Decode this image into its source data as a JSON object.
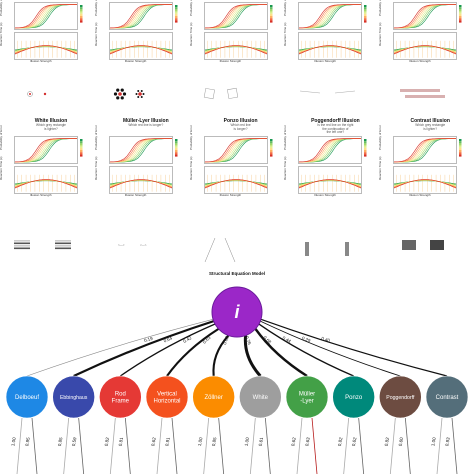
{
  "panels_top": [
    {
      "title": "",
      "sub": "",
      "xlabel": "Illusion Strength",
      "y1": "Probability of Error",
      "y2": "Reaction Time (s)"
    },
    {
      "title": "",
      "sub": "",
      "xlabel": "Illusion Strength",
      "y1": "Probability of Error",
      "y2": "Reaction Time (s)"
    },
    {
      "title": "",
      "sub": "",
      "xlabel": "Illusion Strength",
      "y1": "Probability of Error",
      "y2": "Reaction Time (s)"
    },
    {
      "title": "",
      "sub": "",
      "xlabel": "Illusion Strength",
      "y1": "Probability of Error",
      "y2": "Reaction Time (s)"
    },
    {
      "title": "",
      "sub": "",
      "xlabel": "Illusion Strength",
      "y1": "Probability of Error",
      "y2": "Reaction Time (s)"
    }
  ],
  "panels_bottom": [
    {
      "title": "White Illusion",
      "sub": "Which grey rectangle\nis lighter?",
      "xlabel": "Illusion Strength",
      "y1": "Probability of Error",
      "y2": "Reaction Time (s)"
    },
    {
      "title": "Müller-Lyer Illusion",
      "sub": "Which red line is longer?",
      "xlabel": "Illusion Strength",
      "y1": "Probability of Error",
      "y2": "Reaction Time (s)"
    },
    {
      "title": "Ponzo Illusion",
      "sub": "Which red line\nis longer?",
      "xlabel": "Illusion Strength",
      "y1": "Probability of Error",
      "y2": "Reaction Time (s)"
    },
    {
      "title": "Poggendorff Illusion",
      "sub": "Is the red line on the right\nthe continuation of\nthe left one?",
      "xlabel": "Illusion Strength",
      "y1": "Probability of Error",
      "y2": "Reaction Time (s)"
    },
    {
      "title": "Contrast Illusion",
      "sub": "Which grey rectangle\nis lighter?",
      "xlabel": "Illusion Strength",
      "y1": "Probability of Error",
      "y2": "Reaction Time (s)"
    }
  ],
  "legend_label": "Difficulty",
  "sem": {
    "title": "Structural Equation Model",
    "factor_label": "i",
    "factor_color": "#9b27c8",
    "nodes": [
      {
        "label": "Delboeuf",
        "color": "#1e88e5",
        "loading": "0.19",
        "l1": "1.00",
        "l2": "0.85"
      },
      {
        "label": "Ebbinghaus",
        "color": "#3949ab",
        "loading": "0.64",
        "l1": "0.85",
        "l2": "0.59"
      },
      {
        "label": "Rod\nFrame",
        "color": "#e53935",
        "loading": "0.42",
        "l1": "0.82",
        "l2": "0.81"
      },
      {
        "label": "Vertical\nHorizontal",
        "color": "#f4511e",
        "loading": "0.63",
        "l1": "0.62",
        "l2": "0.81"
      },
      {
        "label": "Zöllner",
        "color": "#fb8c00",
        "loading": "0.63",
        "l1": "1.00",
        "l2": "0.85"
      },
      {
        "label": "White",
        "color": "#9e9e9e",
        "loading": "0.76",
        "l1": "1.00",
        "l2": "0.61"
      },
      {
        "label": "Müller\n-Lyer",
        "color": "#43a047",
        "loading": "0.68",
        "l1": "0.62",
        "l2": "0.63"
      },
      {
        "label": "Ponzo",
        "color": "#00897b",
        "loading": "0.44",
        "l1": "0.82",
        "l2": "0.62"
      },
      {
        "label": "Poggendorff",
        "color": "#6d4c41",
        "loading": "0.29",
        "l1": "0.82",
        "l2": "0.60"
      },
      {
        "label": "Contrast",
        "color": "#546e7a",
        "loading": "0.40",
        "l1": "1.00",
        "l2": "0.83"
      }
    ]
  }
}
